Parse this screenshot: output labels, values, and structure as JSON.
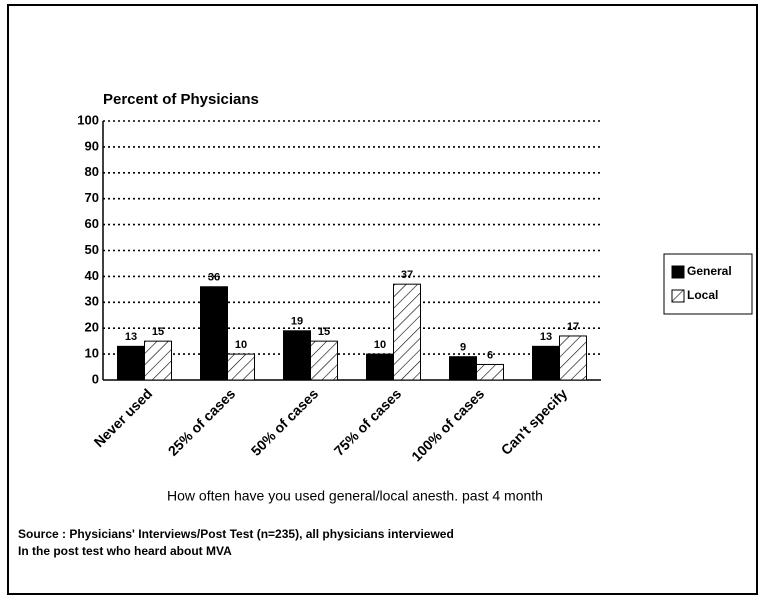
{
  "chart_data": {
    "type": "bar",
    "title": "Percent of Physicians",
    "x_label": "How often have you used general/local anesth. past 4 month",
    "source": [
      "Source : Physicians' Interviews/Post Test (n=235), all physicians interviewed",
      "In the post test who heard about MVA"
    ],
    "categories": [
      "Never used",
      "25% of cases",
      "50% of cases",
      "75% of cases",
      "100% of cases",
      "Can't specify"
    ],
    "series": [
      {
        "name": "General",
        "color": "#000000",
        "hatch": false,
        "values": [
          13,
          36,
          19,
          10,
          9,
          13
        ]
      },
      {
        "name": "Local",
        "color": "#000000",
        "hatch": true,
        "values": [
          15,
          10,
          15,
          37,
          6,
          17
        ]
      }
    ],
    "ylim": [
      0,
      100
    ],
    "yticks": [
      0,
      10,
      20,
      30,
      40,
      50,
      60,
      70,
      80,
      90,
      100
    ],
    "grid": true,
    "legend": "right"
  }
}
